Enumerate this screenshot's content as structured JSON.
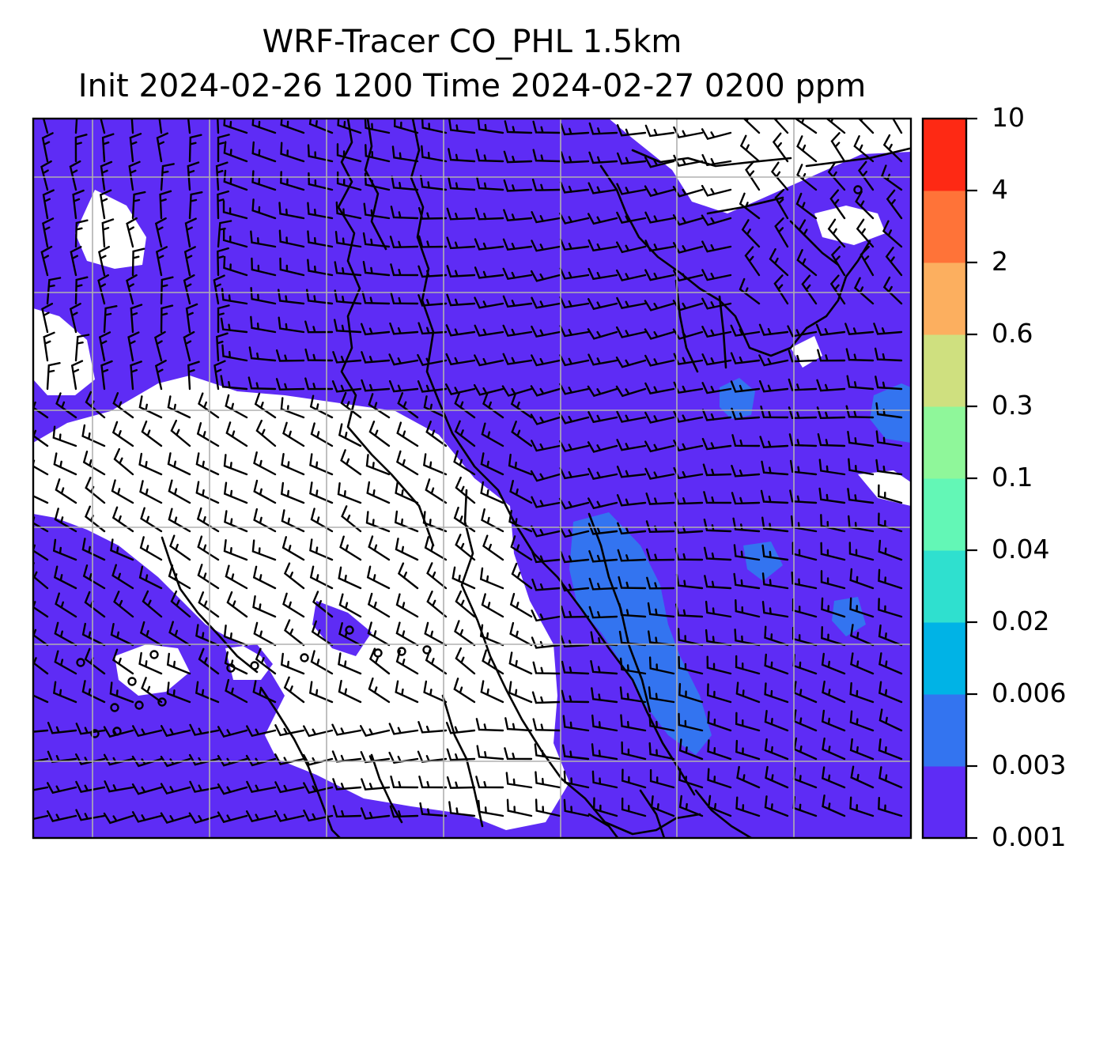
{
  "title": {
    "line1": "WRF-Tracer CO_PHL 1.5km",
    "line2": "Init 2024-02-26 1200 Time 2024-02-27 0200 ppm"
  },
  "colorbar": {
    "levels": [
      "0.001",
      "0.003",
      "0.006",
      "0.02",
      "0.04",
      "0.1",
      "0.3",
      "0.6",
      "2",
      "4",
      "10"
    ],
    "colors": [
      "#5e2cf5",
      "#3374f0",
      "#00b3e6",
      "#2fe0cf",
      "#63f7b6",
      "#8ff79a",
      "#cfe07f",
      "#fcaf5f",
      "#ff7338",
      "#fe2914"
    ]
  },
  "map": {
    "background_color": "#ffffff",
    "coastline_color": "#000000",
    "gridline_color": "#b0b0b0",
    "barb_color": "#000000",
    "tracer_field_color": "#5e2cf5",
    "elevated_tracer_color": "#3374f0",
    "layers": [
      "tracer-concentration",
      "wind-barbs",
      "coastlines",
      "lat-lon-gridlines"
    ]
  }
}
